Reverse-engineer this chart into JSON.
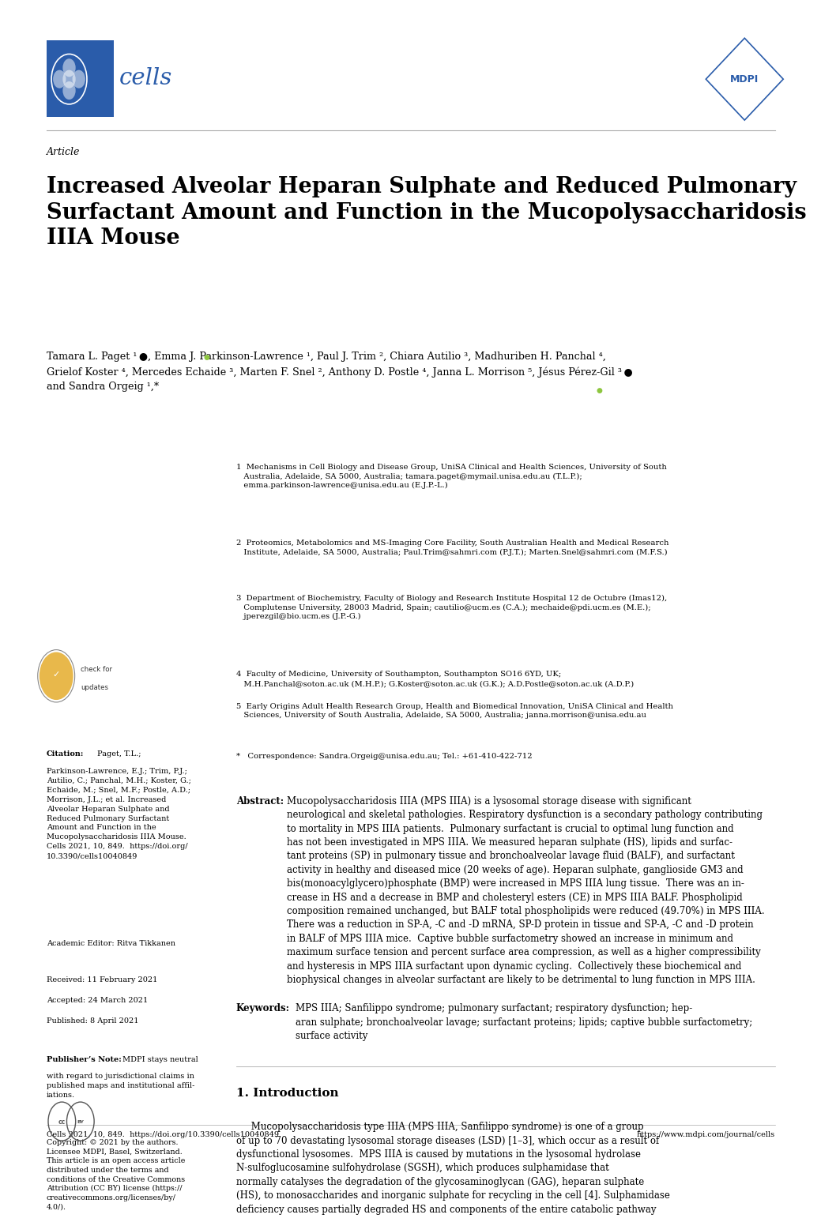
{
  "background_color": "#ffffff",
  "header_line_color": "#888888",
  "cells_color": "#2a5caa",
  "title": "Increased Alveolar Heparan Sulphate and Reduced Pulmonary\nSurfactant Amount and Function in the Mucopolysaccharidosis\nIIIA Mouse",
  "article_label": "Article",
  "affil1": "1  Mechanisms in Cell Biology and Disease Group, UniSA Clinical and Health Sciences, University of South\n   Australia, Adelaide, SA 5000, Australia; tamara.paget@mymail.unisa.edu.au (T.L.P.);\n   emma.parkinson-lawrence@unisa.edu.au (E.J.P.-L.)",
  "affil2": "2  Proteomics, Metabolomics and MS-Imaging Core Facility, South Australian Health and Medical Research\n   Institute, Adelaide, SA 5000, Australia; Paul.Trim@sahmri.com (P.J.T.); Marten.Snel@sahmri.com (M.F.S.)",
  "affil3": "3  Department of Biochemistry, Faculty of Biology and Research Institute Hospital 12 de Octubre (Imas12),\n   Complutense University, 28003 Madrid, Spain; cautilio@ucm.es (C.A.); mechaide@pdi.ucm.es (M.E.);\n   jperezgil@bio.ucm.es (J.P.-G.)",
  "affil4": "4  Faculty of Medicine, University of Southampton, Southampton SO16 6YD, UK;\n   M.H.Panchal@soton.ac.uk (M.H.P.); G.Koster@soton.ac.uk (G.K.); A.D.Postle@soton.ac.uk (A.D.P.)",
  "affil5": "5  Early Origins Adult Health Research Group, Health and Biomedical Innovation, UniSA Clinical and Health\n   Sciences, University of South Australia, Adelaide, SA 5000, Australia; janna.morrison@unisa.edu.au",
  "affil_star": "*   Correspondence: Sandra.Orgeig@unisa.edu.au; Tel.: +61-410-422-712",
  "citation_text": "Paget, T.L.;\nParkinson-Lawrence, E.J.; Trim, P.J.;\nAutilio, C.; Panchal, M.H.; Koster, G.;\nEchaide, M.; Snel, M.F.; Postle, A.D.;\nMorrison, J.L.; et al. Increased\nAlveolar Heparan Sulphate and\nReduced Pulmonary Surfactant\nAmount and Function in the\nMucopolysaccharidosis IIIA Mouse.\nCells 2021, 10, 849.  https://doi.org/\n10.3390/cells10040849",
  "academic_editor": "Academic Editor: Ritva Tikkanen",
  "received": "Received: 11 February 2021",
  "accepted": "Accepted: 24 March 2021",
  "published": "Published: 8 April 2021",
  "publisher_note_body": "MDPI stays neutral\nwith regard to jurisdictional claims in\npublished maps and institutional affil-\niations.",
  "copyright_text": "Copyright: © 2021 by the authors.\nLicensee MDPI, Basel, Switzerland.\nThis article is an open access article\ndistributed under the terms and\nconditions of the Creative Commons\nAttribution (CC BY) license (https://\ncreativecommons.org/licenses/by/\n4.0/).",
  "abstract_text": "Mucopolysaccharidosis IIIA (MPS IIIA) is a lysosomal storage disease with significant neurological and skeletal pathologies. Respiratory dysfunction is a secondary pathology contributing to mortality in MPS IIIA patients.  Pulmonary surfactant is crucial to optimal lung function and has not been investigated in MPS IIIA. We measured heparan sulphate (HS), lipids and surfac-tant proteins (SP) in pulmonary tissue and bronchoalveolar lavage fluid (BALF), and surfactant activity in healthy and diseased mice (20 weeks of age). Heparan sulphate, ganglioside GM3 and bis(monoacylglycero)phosphate (BMP) were increased in MPS IIIA lung tissue.  There was an in-crease in HS and a decrease in BMP and cholesteryl esters (CE) in MPS IIIA BALF. Phospholipid composition remained unchanged, but BALF total phospholipids were reduced (49.70%) in MPS IIIA. There was a reduction in SP-A, -C and -D mRNA, SP-D protein in tissue and SP-A, -C and -D protein in BALF of MPS IIIA mice.  Captive bubble surfactometry showed an increase in minimum and maximum surface tension and percent surface area compression, as well as a higher compressibility and hysteresis in MPS IIIA surfactant upon dynamic cycling.  Collectively these biochemical and biophysical changes in alveolar surfactant are likely to be detrimental to lung function in MPS IIIA.",
  "keywords_text": "MPS IIIA; Sanfilippo syndrome; pulmonary surfactant; respiratory dysfunction; hep-aran sulphate; bronchoalveolar lavage; surfactant proteins; lipids; captive bubble surfactometry;\nsurface activity",
  "intro_heading": "1. Introduction",
  "intro_text": "Mucopolysaccharidosis type IIIA (MPS IIIA, Sanfilippo syndrome) is one of a group of up to 70 devastating lysosomal storage diseases (LSD) [1-3], which occur as a result of dysfunctional lysosomes.  MPS IIIA is caused by mutations in the lysosomal hydrolase N-sulfoglucosamine sulfohydrolase (SGSH), which produces sulphamidase that normally catalyses the degradation of the glycosaminoglycan (GAG), heparan sulphate (HS), to monosaccharides and inorganic sulphate for recycling in the cell [4]. Sulphamidase deficiency causes partially degraded HS and components of the entire catabolic pathway",
  "footer_left": "Cells 2021, 10, 849.  https://doi.org/10.3390/cells10040849",
  "footer_right": "https://www.mdpi.com/journal/cells"
}
